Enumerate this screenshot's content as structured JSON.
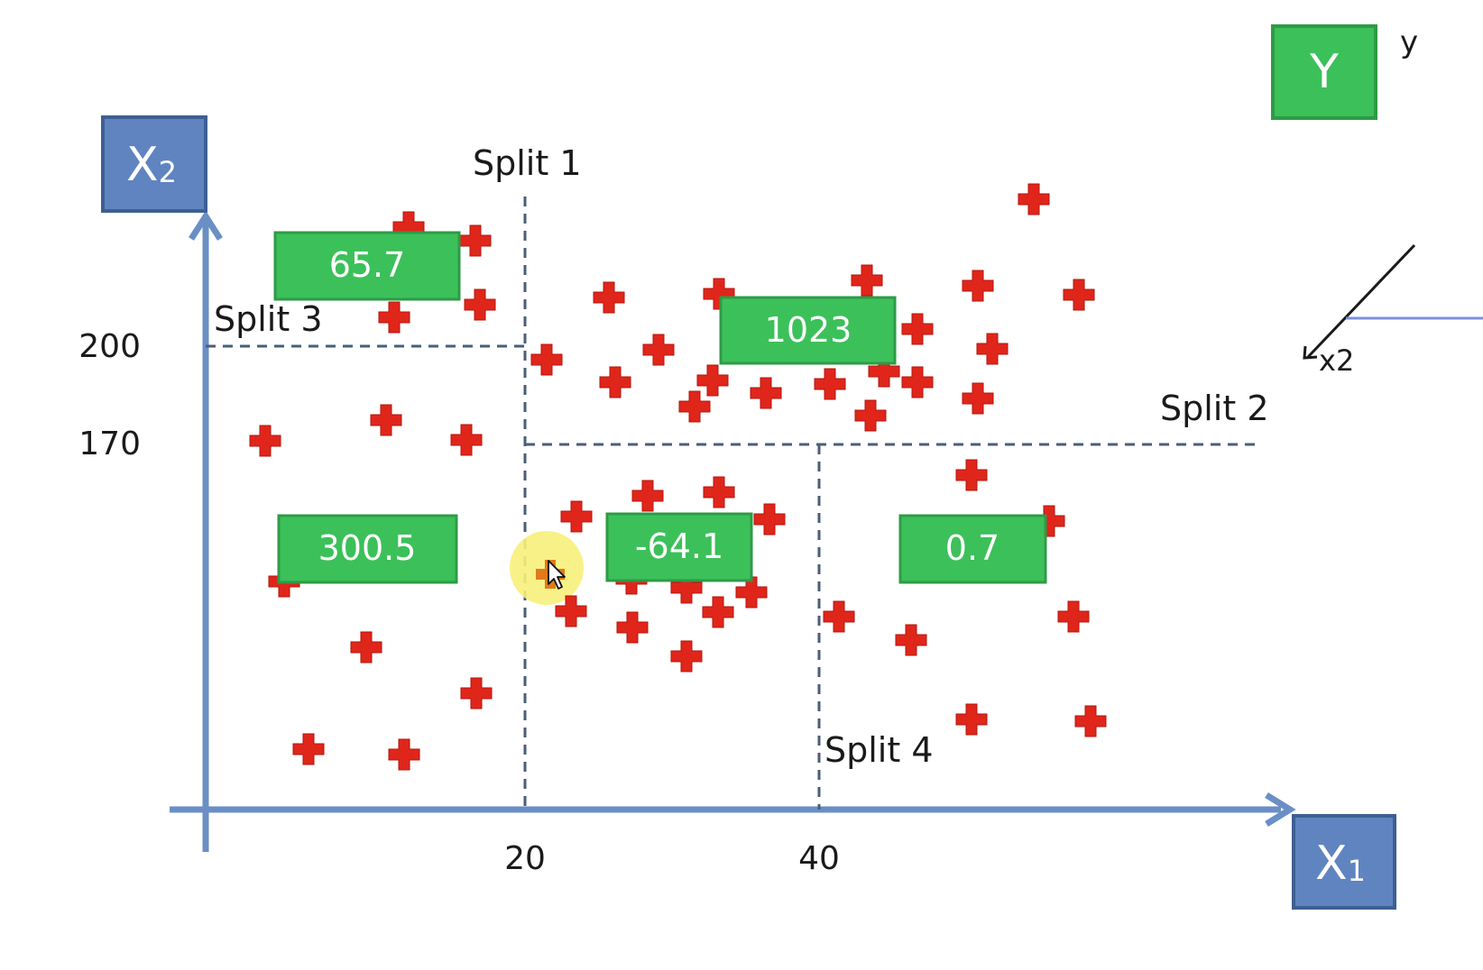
{
  "axes": {
    "x_label": "X",
    "x_sub": "1",
    "y_label": "X",
    "y_sub": "2",
    "x_ticks": [
      "20",
      "40"
    ],
    "y_ticks": [
      "200",
      "170"
    ]
  },
  "splits": [
    {
      "label": "Split 1"
    },
    {
      "label": "Split 2"
    },
    {
      "label": "Split 3"
    },
    {
      "label": "Split 4"
    }
  ],
  "leaves": [
    {
      "value": "65.7"
    },
    {
      "value": "1023"
    },
    {
      "value": "300.5"
    },
    {
      "value": "-64.1"
    },
    {
      "value": "0.7"
    }
  ],
  "y_box": {
    "label": "Y"
  },
  "side_fragment": {
    "label": "x2",
    "edge_char": "y"
  },
  "colors": {
    "axis": "#6a8fc6",
    "axis_box_fill": "#5f84c0",
    "axis_box_border": "#3e5f93",
    "leaf_fill": "#3cc05a",
    "leaf_border": "#2e9b46",
    "point": "#e0261b",
    "split_line": "#4a5e78",
    "highlight": "#f7ef7a"
  },
  "point_icon": "plus-marker-icon"
}
